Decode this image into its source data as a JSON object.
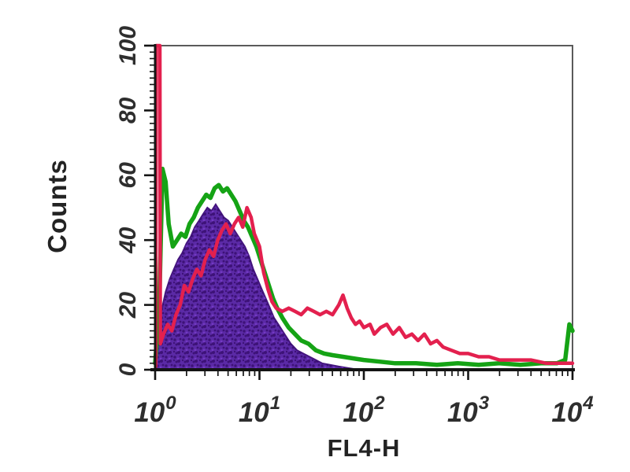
{
  "figure": {
    "background": "#ffffff"
  },
  "chart_data": {
    "type": "area",
    "subtype": "flow-cytometry-overlay-histogram",
    "title": "",
    "xlabel": "FL4-H",
    "ylabel": "Counts",
    "xscale": "log10",
    "xlim_log10": [
      0,
      4
    ],
    "ylim": [
      0,
      100
    ],
    "x_tick_mantissa": "10",
    "x_decade_exponents": [
      "0",
      "1",
      "2",
      "3",
      "4"
    ],
    "y_ticks": [
      "0",
      "20",
      "40",
      "60",
      "80",
      "100"
    ],
    "y_major_step": 20,
    "y_minor_step": 2,
    "grid": false,
    "legend": "none",
    "axis_color": "#141414",
    "frame_color": "#5a5a5a",
    "tick_label_color": "#2e2e2e",
    "series": [
      {
        "name": "filled-violet-histogram",
        "style": "filled",
        "fill": "#5b2aa6",
        "speckle": "#370e6e",
        "edge": "#45157f",
        "points": [
          [
            0.0,
            0
          ],
          [
            0.03,
            10
          ],
          [
            0.06,
            18
          ],
          [
            0.1,
            24
          ],
          [
            0.14,
            28
          ],
          [
            0.18,
            31
          ],
          [
            0.22,
            34
          ],
          [
            0.26,
            36
          ],
          [
            0.3,
            39
          ],
          [
            0.34,
            41
          ],
          [
            0.38,
            44
          ],
          [
            0.42,
            46
          ],
          [
            0.46,
            48
          ],
          [
            0.5,
            50
          ],
          [
            0.54,
            49
          ],
          [
            0.58,
            51
          ],
          [
            0.62,
            49
          ],
          [
            0.66,
            47
          ],
          [
            0.7,
            46
          ],
          [
            0.74,
            44
          ],
          [
            0.78,
            42
          ],
          [
            0.82,
            40
          ],
          [
            0.86,
            38
          ],
          [
            0.9,
            35
          ],
          [
            0.94,
            31
          ],
          [
            0.98,
            28
          ],
          [
            1.02,
            25
          ],
          [
            1.06,
            22
          ],
          [
            1.1,
            19
          ],
          [
            1.14,
            16
          ],
          [
            1.18,
            14
          ],
          [
            1.24,
            11
          ],
          [
            1.3,
            8
          ],
          [
            1.36,
            6
          ],
          [
            1.42,
            5
          ],
          [
            1.48,
            4
          ],
          [
            1.54,
            3
          ],
          [
            1.6,
            2
          ],
          [
            1.68,
            1.5
          ],
          [
            1.76,
            1
          ],
          [
            1.85,
            0.5
          ],
          [
            1.95,
            0
          ]
        ]
      },
      {
        "name": "green-outline-histogram",
        "style": "line",
        "color": "#15a315",
        "stroke_width": 5.5,
        "points": [
          [
            0.0,
            2
          ],
          [
            0.04,
            20
          ],
          [
            0.07,
            62
          ],
          [
            0.1,
            58
          ],
          [
            0.13,
            45
          ],
          [
            0.17,
            38
          ],
          [
            0.21,
            40
          ],
          [
            0.25,
            42
          ],
          [
            0.29,
            41
          ],
          [
            0.33,
            45
          ],
          [
            0.37,
            47
          ],
          [
            0.41,
            50
          ],
          [
            0.45,
            52
          ],
          [
            0.49,
            54
          ],
          [
            0.53,
            53
          ],
          [
            0.57,
            56
          ],
          [
            0.61,
            57
          ],
          [
            0.65,
            55
          ],
          [
            0.69,
            56
          ],
          [
            0.73,
            54
          ],
          [
            0.77,
            52
          ],
          [
            0.81,
            49
          ],
          [
            0.85,
            46
          ],
          [
            0.89,
            44
          ],
          [
            0.93,
            41
          ],
          [
            0.97,
            38
          ],
          [
            1.01,
            34
          ],
          [
            1.05,
            30
          ],
          [
            1.09,
            26
          ],
          [
            1.13,
            22
          ],
          [
            1.17,
            19
          ],
          [
            1.22,
            16
          ],
          [
            1.28,
            13
          ],
          [
            1.34,
            11
          ],
          [
            1.4,
            9
          ],
          [
            1.47,
            8
          ],
          [
            1.54,
            6
          ],
          [
            1.62,
            5
          ],
          [
            1.7,
            4.5
          ],
          [
            1.8,
            4
          ],
          [
            1.9,
            3.5
          ],
          [
            2.0,
            3
          ],
          [
            2.15,
            2.5
          ],
          [
            2.3,
            2
          ],
          [
            2.5,
            2
          ],
          [
            2.7,
            1.5
          ],
          [
            2.9,
            2
          ],
          [
            3.1,
            1.5
          ],
          [
            3.3,
            2
          ],
          [
            3.5,
            1.5
          ],
          [
            3.7,
            2
          ],
          [
            3.85,
            2
          ],
          [
            3.93,
            3
          ],
          [
            3.97,
            14
          ],
          [
            4.0,
            12
          ]
        ]
      },
      {
        "name": "red-outline-histogram",
        "style": "line",
        "color": "#e3204e",
        "stroke_width": 4.5,
        "points": [
          [
            0.005,
            1
          ],
          [
            0.01,
            100
          ],
          [
            0.045,
            100
          ],
          [
            0.05,
            8
          ],
          [
            0.08,
            11
          ],
          [
            0.12,
            14
          ],
          [
            0.16,
            12
          ],
          [
            0.2,
            17
          ],
          [
            0.24,
            20
          ],
          [
            0.28,
            26
          ],
          [
            0.32,
            24
          ],
          [
            0.36,
            28
          ],
          [
            0.4,
            31
          ],
          [
            0.44,
            29
          ],
          [
            0.48,
            34
          ],
          [
            0.52,
            37
          ],
          [
            0.56,
            35
          ],
          [
            0.6,
            40
          ],
          [
            0.64,
            43
          ],
          [
            0.68,
            45
          ],
          [
            0.72,
            42
          ],
          [
            0.76,
            45
          ],
          [
            0.8,
            47
          ],
          [
            0.84,
            44
          ],
          [
            0.88,
            50
          ],
          [
            0.92,
            47
          ],
          [
            0.95,
            42
          ],
          [
            1.0,
            38
          ],
          [
            1.04,
            30
          ],
          [
            1.08,
            25
          ],
          [
            1.12,
            21
          ],
          [
            1.16,
            19
          ],
          [
            1.22,
            18
          ],
          [
            1.28,
            19
          ],
          [
            1.34,
            18
          ],
          [
            1.4,
            17
          ],
          [
            1.46,
            19
          ],
          [
            1.52,
            18
          ],
          [
            1.58,
            17
          ],
          [
            1.64,
            18
          ],
          [
            1.7,
            17
          ],
          [
            1.76,
            20
          ],
          [
            1.8,
            23
          ],
          [
            1.84,
            19
          ],
          [
            1.88,
            16
          ],
          [
            1.92,
            14
          ],
          [
            1.96,
            15
          ],
          [
            2.0,
            13
          ],
          [
            2.06,
            14
          ],
          [
            2.1,
            11
          ],
          [
            2.16,
            13
          ],
          [
            2.22,
            14
          ],
          [
            2.28,
            11
          ],
          [
            2.34,
            13
          ],
          [
            2.4,
            10
          ],
          [
            2.46,
            11
          ],
          [
            2.52,
            9
          ],
          [
            2.58,
            11
          ],
          [
            2.64,
            8
          ],
          [
            2.7,
            9
          ],
          [
            2.76,
            7
          ],
          [
            2.84,
            6
          ],
          [
            2.92,
            5
          ],
          [
            3.0,
            5
          ],
          [
            3.1,
            4
          ],
          [
            3.2,
            4
          ],
          [
            3.3,
            3
          ],
          [
            3.45,
            3
          ],
          [
            3.6,
            3
          ],
          [
            3.75,
            2
          ],
          [
            3.9,
            2
          ],
          [
            4.0,
            2
          ]
        ]
      }
    ]
  }
}
